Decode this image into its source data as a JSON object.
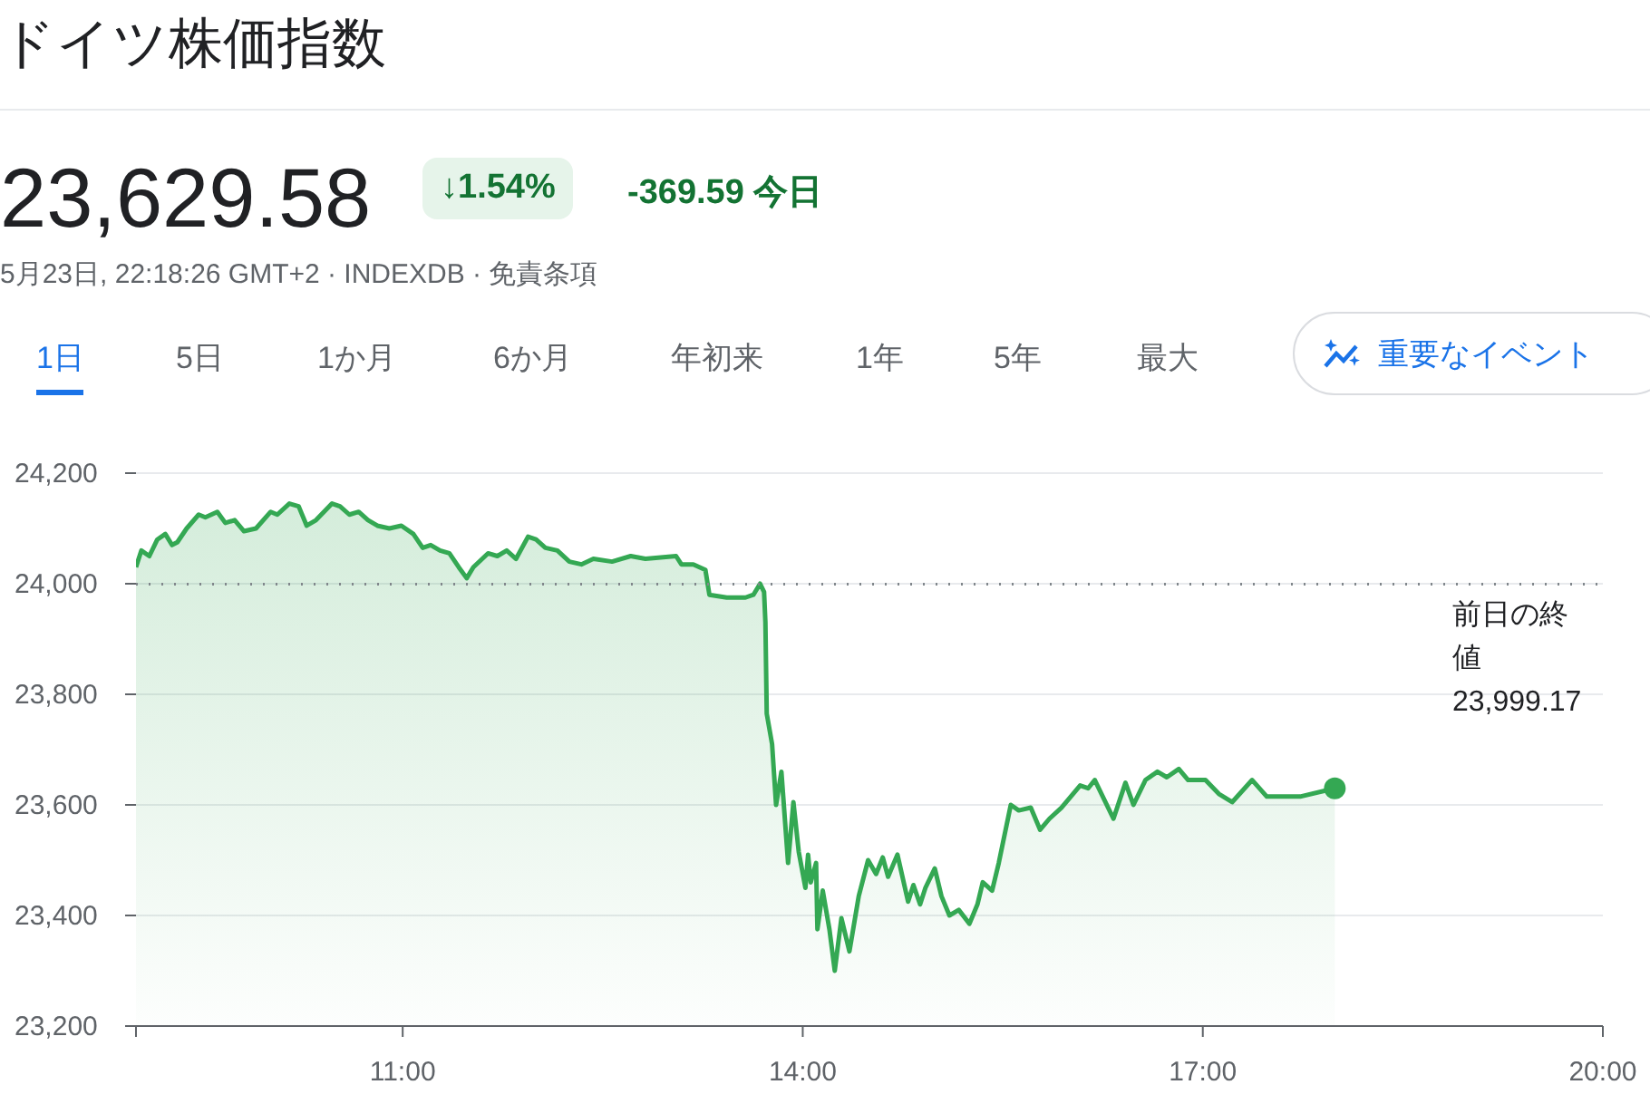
{
  "chart_data": {
    "type": "area",
    "title": "ドイツ株価指数",
    "annotations": [
      "23,629.58",
      "↓1.54%",
      "-369.59 今日",
      "5月23日, 22:18:26 GMT+2 · INDEXDB · 免責条項",
      "1日",
      "5日",
      "1か月",
      "6か月",
      "年初来",
      "1年",
      "5年",
      "最大",
      "重要なイベント"
    ],
    "x": [
      9.0,
      9.04,
      9.1,
      9.16,
      9.22,
      9.27,
      9.31,
      9.38,
      9.47,
      9.52,
      9.61,
      9.67,
      9.74,
      9.81,
      9.9,
      10.01,
      10.06,
      10.15,
      10.22,
      10.28,
      10.35,
      10.47,
      10.53,
      10.6,
      10.67,
      10.74,
      10.81,
      10.9,
      10.99,
      11.08,
      11.15,
      11.21,
      11.28,
      11.35,
      11.42,
      11.48,
      11.53,
      11.64,
      11.71,
      11.78,
      11.85,
      11.94,
      12.0,
      12.07,
      12.16,
      12.25,
      12.34,
      12.43,
      12.57,
      12.71,
      12.82,
      13.05,
      13.09,
      13.18,
      13.27,
      13.3,
      13.43,
      13.57,
      13.63,
      13.68,
      13.71,
      13.72,
      13.73,
      13.77,
      13.8,
      13.84,
      13.89,
      13.93,
      13.97,
      14.02,
      14.04,
      14.06,
      14.1,
      14.11,
      14.15,
      14.2,
      14.24,
      14.29,
      14.35,
      14.42,
      14.49,
      14.55,
      14.6,
      14.64,
      14.71,
      14.79,
      14.83,
      14.88,
      14.92,
      14.99,
      15.04,
      15.1,
      15.17,
      15.25,
      15.31,
      15.35,
      15.42,
      15.47,
      15.56,
      15.62,
      15.71,
      15.78,
      15.85,
      15.94,
      16.08,
      16.14,
      16.19,
      16.33,
      16.42,
      16.48,
      16.57,
      16.66,
      16.73,
      16.82,
      16.89,
      17.02,
      17.12,
      17.22,
      17.37,
      17.48,
      17.73,
      17.99
    ],
    "series": [
      {
        "color": "#34a853",
        "values": [
          24030,
          24060,
          24050,
          24080,
          24090,
          24070,
          24075,
          24100,
          24125,
          24120,
          24130,
          24110,
          24115,
          24095,
          24100,
          24130,
          24125,
          24145,
          24140,
          24105,
          24115,
          24145,
          24140,
          24125,
          24130,
          24115,
          24105,
          24100,
          24105,
          24090,
          24065,
          24070,
          24060,
          24055,
          24030,
          24010,
          24030,
          24055,
          24050,
          24060,
          24045,
          24085,
          24080,
          24065,
          24060,
          24040,
          24035,
          24045,
          24040,
          24050,
          24045,
          24050,
          24035,
          24035,
          24025,
          23980,
          23975,
          23975,
          23980,
          24000,
          23985,
          23930,
          23765,
          23710,
          23600,
          23660,
          23495,
          23605,
          23515,
          23450,
          23510,
          23460,
          23495,
          23375,
          23445,
          23375,
          23300,
          23395,
          23335,
          23435,
          23500,
          23475,
          23505,
          23470,
          23510,
          23425,
          23455,
          23420,
          23450,
          23485,
          23435,
          23400,
          23410,
          23385,
          23420,
          23460,
          23445,
          23495,
          23600,
          23590,
          23595,
          23555,
          23575,
          23595,
          23635,
          23630,
          23645,
          23575,
          23640,
          23600,
          23645,
          23660,
          23650,
          23665,
          23645,
          23645,
          23620,
          23605,
          23645,
          23615,
          23615,
          23630
        ]
      }
    ],
    "xlim": [
      9,
      20
    ],
    "xticks": [
      {
        "value": 9,
        "label": null
      },
      {
        "value": 11,
        "label": "11:00"
      },
      {
        "value": 14,
        "label": "14:00"
      },
      {
        "value": 17,
        "label": "17:00"
      },
      {
        "value": 20,
        "label": "20:00"
      }
    ],
    "ylim": [
      23200,
      24200
    ],
    "yticks": [
      {
        "value": 23200,
        "label": "23,200"
      },
      {
        "value": 23400,
        "label": "23,400"
      },
      {
        "value": 23600,
        "label": "23,600"
      },
      {
        "value": 23800,
        "label": "23,800"
      },
      {
        "value": 24000,
        "label": "24,000"
      },
      {
        "value": 24200,
        "label": "24,200"
      }
    ],
    "grid": "y",
    "ref_lines": [
      {
        "axis": "y",
        "value": 23999.17,
        "label": "前日の終値 23,999.17",
        "color": "#80868b",
        "line_style": "dotted"
      }
    ]
  }
}
